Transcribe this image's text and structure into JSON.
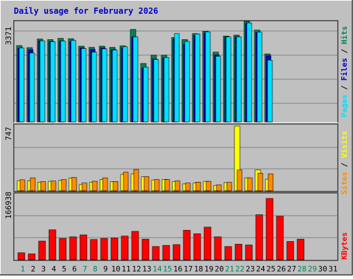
{
  "chart_data": [
    {
      "type": "bar",
      "title": "Daily usage for February 2026",
      "ylabel_max": "3371",
      "ymax": 3371,
      "legend": [
        "Pages",
        "Files",
        "Hits"
      ],
      "series": [
        {
          "name": "Hits",
          "values": [
            2560,
            2490,
            2780,
            2760,
            2800,
            2790,
            2540,
            2500,
            2540,
            2500,
            2550,
            3100,
            1960,
            2240,
            2240,
            2830,
            2760,
            2960,
            3040,
            2340,
            2880,
            2910,
            3370,
            3080,
            2280
          ]
        },
        {
          "name": "Files",
          "values": [
            2470,
            2420,
            2720,
            2700,
            2710,
            2700,
            2480,
            2430,
            2480,
            2430,
            2480,
            2850,
            1800,
            2110,
            2140,
            2780,
            2600,
            2900,
            2980,
            2250,
            2840,
            2850,
            3300,
            3000,
            2220
          ]
        },
        {
          "name": "Pages",
          "values": [
            2480,
            2310,
            2720,
            2690,
            2710,
            2730,
            2460,
            2340,
            2450,
            2410,
            2520,
            2850,
            1840,
            2090,
            2160,
            2960,
            2700,
            2950,
            3020,
            2200,
            2850,
            2850,
            3320,
            3010,
            2070
          ]
        }
      ]
    },
    {
      "type": "bar",
      "ylabel_max": "747",
      "ymax": 747,
      "legend": [
        "Sites",
        "Visits"
      ],
      "series": [
        {
          "name": "Visits",
          "values": [
            118,
            116,
            100,
            110,
            120,
            148,
            72,
            100,
            130,
            105,
            190,
            196,
            162,
            126,
            132,
            108,
            80,
            90,
            110,
            62,
            95,
            747,
            150,
            240,
            135
          ]
        },
        {
          "name": "Sites",
          "values": [
            128,
            150,
            106,
            113,
            130,
            155,
            90,
            111,
            150,
            108,
            215,
            246,
            165,
            130,
            130,
            115,
            90,
            100,
            110,
            70,
            98,
            240,
            150,
            204,
            196
          ]
        }
      ]
    },
    {
      "type": "bar",
      "ylabel_max": "166938",
      "ymax": 166938,
      "legend": [
        "KBytes"
      ],
      "series": [
        {
          "name": "KBytes",
          "values": [
            18000,
            15000,
            48000,
            77000,
            55000,
            59000,
            64000,
            52000,
            55000,
            56000,
            61000,
            73000,
            53000,
            34000,
            37000,
            39000,
            76000,
            67000,
            84000,
            59000,
            34000,
            40000,
            38000,
            116000,
            158000,
            112000,
            47000,
            53000
          ]
        }
      ]
    }
  ],
  "x_axis": {
    "days": [
      "1",
      "2",
      "3",
      "4",
      "5",
      "6",
      "7",
      "8",
      "9",
      "10",
      "11",
      "12",
      "13",
      "14",
      "15",
      "16",
      "17",
      "18",
      "19",
      "20",
      "21",
      "22",
      "23",
      "24",
      "25",
      "26",
      "27",
      "28",
      "29",
      "30",
      "31"
    ],
    "weekend_days": [
      1,
      7,
      8,
      14,
      15,
      21,
      22,
      28,
      29
    ]
  },
  "colors": {
    "background": "#c0c0c0",
    "plot_bg": "#c0c0c0",
    "title": "#0000cc",
    "hits": "#00805c",
    "files": "#0000cc",
    "pages": "#00e0ff",
    "visits": "#ffff00",
    "sites": "#ff8c00",
    "kbytes": "#ff0000",
    "weekend": "#00805c",
    "weekday": "#000000"
  }
}
